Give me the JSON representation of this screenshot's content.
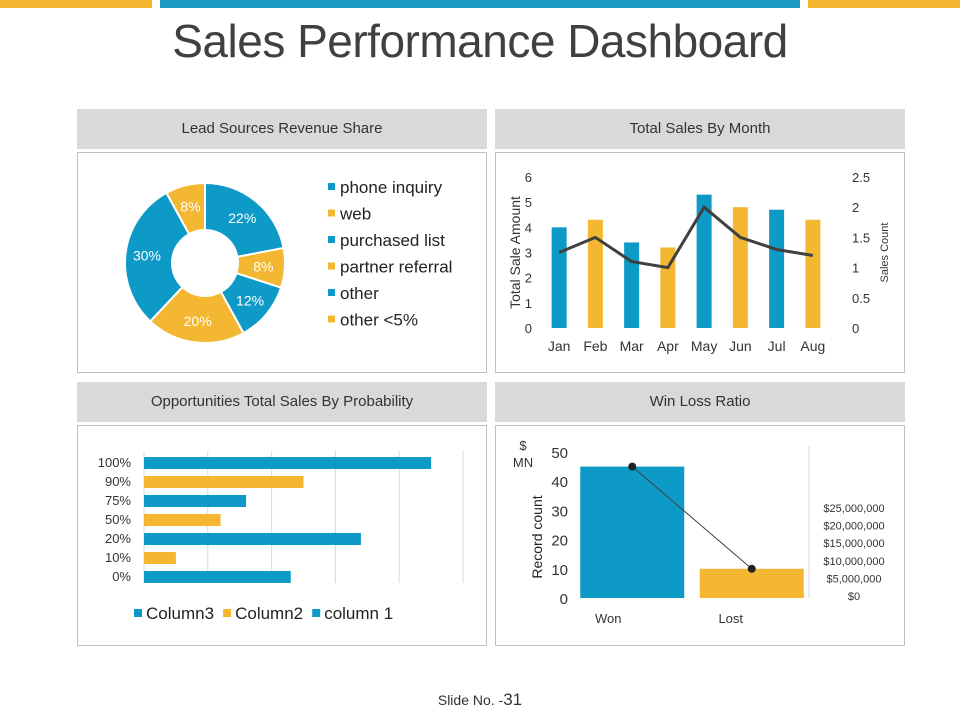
{
  "page": {
    "title": "Sales Performance Dashboard",
    "slide_label": "Slide No. -",
    "slide_number": "31"
  },
  "colors": {
    "blue": "#0e9ac6",
    "orange": "#f4b732",
    "line": "#404040",
    "accent_top_blue": "#1d9bc6",
    "accent_top_orange": "#f4b732"
  },
  "panels": {
    "lead_sources": {
      "heading": "Lead Sources Revenue Share"
    },
    "sales_by_month": {
      "heading": "Total Sales By Month"
    },
    "opportunities": {
      "heading": "Opportunities Total Sales By Probability"
    },
    "win_loss": {
      "heading": "Win Loss Ratio"
    }
  },
  "chart_data": [
    {
      "type": "pie",
      "title": "Lead Sources Revenue Share",
      "donut": true,
      "slices": [
        {
          "label": "phone inquiry",
          "value": 22,
          "text": "22%",
          "color": "#0e9ac6"
        },
        {
          "label": "web",
          "value": 8,
          "text": "8%",
          "color": "#f4b732"
        },
        {
          "label": "purchased list",
          "value": 12,
          "text": "12%",
          "color": "#0e9ac6"
        },
        {
          "label": "partner referral",
          "value": 20,
          "text": "20%",
          "color": "#f4b732"
        },
        {
          "label": "other",
          "value": 30,
          "text": "30%",
          "color": "#0e9ac6"
        },
        {
          "label": "other <5%",
          "value": 8,
          "text": "8%",
          "color": "#f4b732"
        }
      ],
      "legend": [
        "phone inquiry",
        "web",
        "purchased list",
        "partner referral",
        "other",
        "other <5%"
      ],
      "legend_position": "right"
    },
    {
      "type": "bar",
      "title": "Total Sales By Month",
      "categories": [
        "Jan",
        "Feb",
        "Mar",
        "Apr",
        "May",
        "Jun",
        "Jul",
        "Aug"
      ],
      "series": [
        {
          "name": "Total Sale Amount",
          "type": "bar",
          "axis": "left",
          "values": [
            4.0,
            4.3,
            3.4,
            3.2,
            5.3,
            4.8,
            4.7,
            4.3
          ],
          "colors": [
            "#0e9ac6",
            "#f4b732",
            "#0e9ac6",
            "#f4b732",
            "#0e9ac6",
            "#f4b732",
            "#0e9ac6",
            "#f4b732"
          ]
        },
        {
          "name": "Sales Count",
          "type": "line",
          "axis": "right",
          "values": [
            1.25,
            1.5,
            1.1,
            1.0,
            2.0,
            1.5,
            1.3,
            1.2
          ]
        }
      ],
      "ylabel": "Total Sale Amount",
      "ylabel_right": "Sales Count",
      "ylim": [
        0,
        6
      ],
      "yticks": [
        "0",
        "1",
        "2",
        "3",
        "4",
        "5",
        "6"
      ],
      "ylim_right": [
        0,
        2.5
      ],
      "yticks_right": [
        "0",
        "0.5",
        "1",
        "1.5",
        "2",
        "2.5"
      ]
    },
    {
      "type": "bar",
      "orientation": "horizontal",
      "title": "Opportunities Total Sales By Probability",
      "categories": [
        "100%",
        "90%",
        "75%",
        "50%",
        "20%",
        "10%",
        "0%"
      ],
      "values": [
        90,
        50,
        32,
        24,
        68,
        10,
        46
      ],
      "bar_series": [
        "Column3",
        "Column2",
        "column 1",
        "Column2",
        "column 1",
        "Column2",
        "column 1"
      ],
      "xlim": [
        0,
        100
      ],
      "grid": true,
      "legend": [
        {
          "name": "Column3",
          "color": "#0e9ac6"
        },
        {
          "name": "Column2",
          "color": "#f4b732"
        },
        {
          "name": "column 1",
          "color": "#0e9ac6"
        }
      ],
      "legend_position": "bottom"
    },
    {
      "type": "bar",
      "title": "Win Loss Ratio",
      "categories": [
        "Won",
        "Lost"
      ],
      "values": [
        45,
        10
      ],
      "colors": [
        "#0e9ac6",
        "#f4b732"
      ],
      "line_values": [
        45,
        10
      ],
      "ylabel": "Record count",
      "ylabel_unit": "$ MN",
      "ylim": [
        0,
        50
      ],
      "yticks": [
        "0",
        "10",
        "20",
        "30",
        "40",
        "50"
      ],
      "right_ticks": [
        "$25,000,000",
        "$20,000,000",
        "$15,000,000",
        "$10,000,000",
        "$5,000,000",
        "$0"
      ]
    }
  ]
}
